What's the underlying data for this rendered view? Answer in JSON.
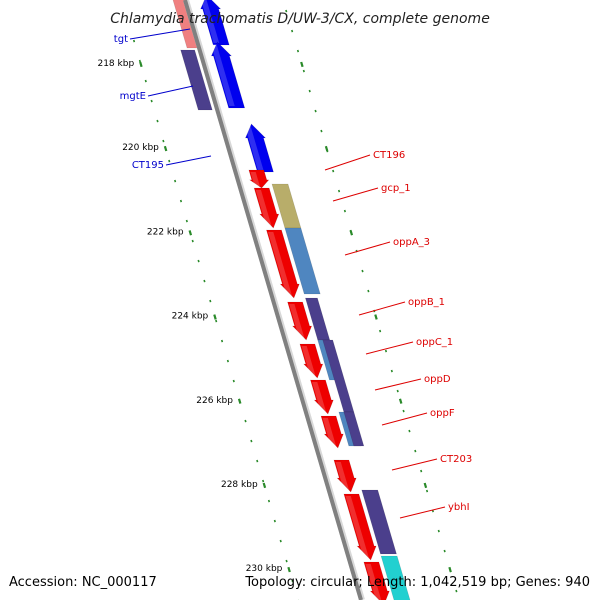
{
  "title": "Chlamydia trachomatis D/UW-3/CX, complete genome",
  "footer": {
    "accession": "Accession: NC_000117",
    "stats": "Topology: circular; Length: 1,042,519 bp; Genes: 940"
  },
  "colors": {
    "backbone": "#808080",
    "tick": "#2a8a2a",
    "forward_label": "#0000cc",
    "reverse_label": "#dd0000",
    "forward_gene": "#0000ee",
    "reverse_gene": "#ee0000",
    "cog_olive": "#b8ad6a",
    "cog_steelblue": "#4f86c0",
    "cog_slate": "#4b3f8c",
    "cog_pink": "#f08080",
    "cog_cyan": "#22d0d0"
  },
  "ticks": [
    {
      "kbp": 218,
      "label": "218 kbp"
    },
    {
      "kbp": 220,
      "label": "220 kbp"
    },
    {
      "kbp": 222,
      "label": "222 kbp"
    },
    {
      "kbp": 224,
      "label": "224 kbp"
    },
    {
      "kbp": 226,
      "label": "226 kbp"
    },
    {
      "kbp": 228,
      "label": "228 kbp"
    },
    {
      "kbp": 230,
      "label": "230 kbp"
    }
  ],
  "forward_labels": [
    "tgt",
    "mgtE",
    "CT195"
  ],
  "reverse_labels": [
    "CT196",
    "gcp_1",
    "oppA_3",
    "oppB_1",
    "oppC_1",
    "oppD",
    "oppF",
    "CT203",
    "ybhI"
  ]
}
